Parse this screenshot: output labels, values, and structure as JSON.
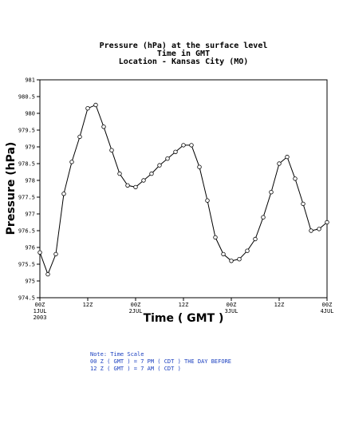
{
  "chart_data": {
    "type": "line",
    "title": [
      "Pressure (hPa) at the surface level",
      "Time in GMT",
      "Location - Kansas City (MO)"
    ],
    "xlabel": "Time ( GMT )",
    "ylabel": "Pressure (hPa)",
    "x": [
      0,
      2,
      4,
      6,
      8,
      10,
      12,
      14,
      16,
      18,
      20,
      22,
      24,
      26,
      28,
      30,
      32,
      34,
      36,
      38,
      40,
      42,
      44,
      46,
      48,
      50,
      52,
      54,
      56,
      58,
      60,
      62,
      64,
      66,
      68,
      70,
      72
    ],
    "series": [
      {
        "name": "Pressure",
        "color": "#000000",
        "values": [
          975.85,
          975.2,
          975.8,
          977.6,
          978.55,
          979.3,
          980.15,
          980.25,
          979.6,
          978.9,
          978.2,
          977.85,
          977.8,
          978.0,
          978.2,
          978.45,
          978.65,
          978.85,
          979.05,
          979.05,
          978.4,
          977.4,
          976.3,
          975.8,
          975.6,
          975.65,
          975.9,
          976.25,
          976.9,
          977.65,
          978.5,
          978.7,
          978.05,
          977.3,
          976.5,
          976.55,
          976.75
        ]
      }
    ],
    "xlim": [
      0,
      72
    ],
    "xticks": [
      {
        "value": 0,
        "label": "00Z\n1JUL\n2003"
      },
      {
        "value": 12,
        "label": "12Z"
      },
      {
        "value": 24,
        "label": "00Z\n2JUL"
      },
      {
        "value": 36,
        "label": "12Z"
      },
      {
        "value": 48,
        "label": "00Z\n3JUL"
      },
      {
        "value": 60,
        "label": "12Z"
      },
      {
        "value": 72,
        "label": "00Z\n4JUL"
      }
    ],
    "ylim": [
      974.5,
      981
    ],
    "yticks": [
      974.5,
      975,
      975.5,
      976,
      976.5,
      977,
      977.5,
      978,
      978.5,
      979,
      979.5,
      980,
      980.5,
      981
    ],
    "notes": [
      "Note: Time Scale",
      "00 Z ( GMT ) = 7 PM ( CDT ) THE DAY BEFORE",
      "12 Z ( GMT ) = 7 AM ( CDT )"
    ],
    "notes_color": "#1a3fbf"
  }
}
